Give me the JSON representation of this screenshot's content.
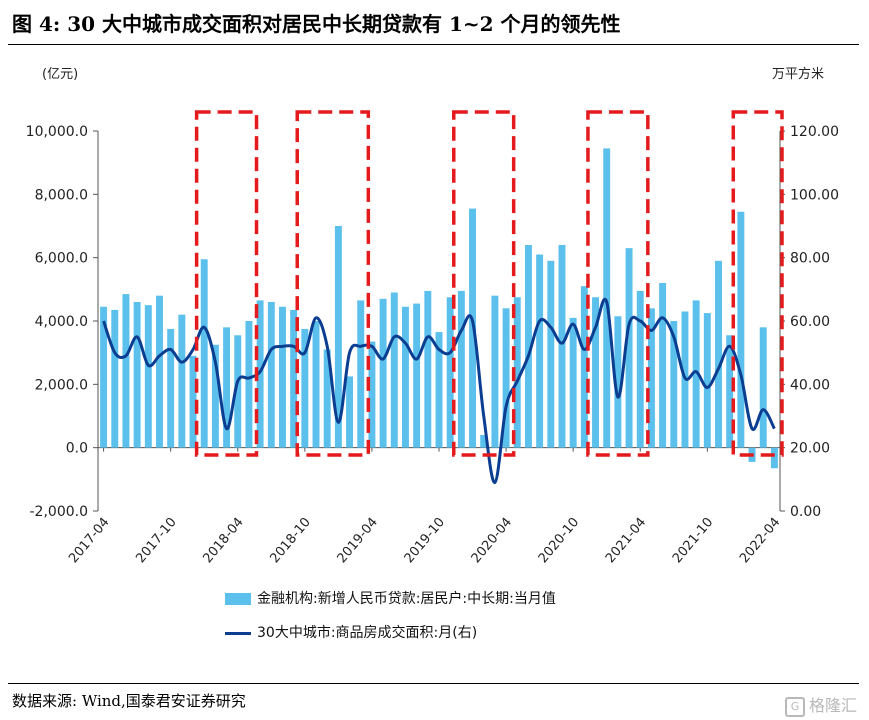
{
  "figure": {
    "title": "图 4:  30 大中城市成交面积对居民中长期贷款有 1~2 个月的领先性",
    "source": "数据来源:  Wind,国泰君安证券研究",
    "watermark": "格隆汇"
  },
  "chart_data": {
    "type": "bar",
    "left_unit": "(亿元)",
    "right_unit": "万平方米",
    "left_ticks": [
      "10,000.0",
      "8,000.0",
      "6,000.0",
      "4,000.0",
      "2,000.0",
      "0.0",
      "-2,000.0"
    ],
    "left_tick_values": [
      10000,
      8000,
      6000,
      4000,
      2000,
      0,
      -2000
    ],
    "right_ticks": [
      "120.00",
      "100.00",
      "80.00",
      "60.00",
      "40.00",
      "20.00",
      "0.00"
    ],
    "right_tick_values": [
      120,
      100,
      80,
      60,
      40,
      20,
      0
    ],
    "ylim": [
      -2000,
      10000
    ],
    "y2lim": [
      0,
      120
    ],
    "x_tick_labels": [
      "2017-04",
      "2017-10",
      "2018-04",
      "2018-10",
      "2019-04",
      "2019-10",
      "2020-04",
      "2020-10",
      "2021-04",
      "2021-10",
      "2022-04"
    ],
    "categories": [
      "2017-04",
      "2017-05",
      "2017-06",
      "2017-07",
      "2017-08",
      "2017-09",
      "2017-10",
      "2017-11",
      "2017-12",
      "2018-01",
      "2018-02",
      "2018-03",
      "2018-04",
      "2018-05",
      "2018-06",
      "2018-07",
      "2018-08",
      "2018-09",
      "2018-10",
      "2018-11",
      "2018-12",
      "2019-01",
      "2019-02",
      "2019-03",
      "2019-04",
      "2019-05",
      "2019-06",
      "2019-07",
      "2019-08",
      "2019-09",
      "2019-10",
      "2019-11",
      "2019-12",
      "2020-01",
      "2020-02",
      "2020-03",
      "2020-04",
      "2020-05",
      "2020-06",
      "2020-07",
      "2020-08",
      "2020-09",
      "2020-10",
      "2020-11",
      "2020-12",
      "2021-01",
      "2021-02",
      "2021-03",
      "2021-04",
      "2021-05",
      "2021-06",
      "2021-07",
      "2021-08",
      "2021-09",
      "2021-10",
      "2021-11",
      "2021-12",
      "2022-01",
      "2022-02",
      "2022-03",
      "2022-04"
    ],
    "series": [
      {
        "name": "金融机构:新增人民币贷款:居民户:中长期:当月值",
        "kind": "bar",
        "axis": "left",
        "color": "#5bc0eb",
        "values": [
          4450,
          4350,
          4850,
          4600,
          4500,
          4800,
          3750,
          4200,
          2900,
          5950,
          3250,
          3800,
          3550,
          4000,
          4650,
          4600,
          4450,
          4350,
          3750,
          4000,
          3100,
          7000,
          2250,
          4650,
          3350,
          4700,
          4900,
          4450,
          4550,
          4950,
          3650,
          4750,
          4950,
          7550,
          400,
          4800,
          4400,
          4750,
          6400,
          6100,
          5900,
          6400,
          4100,
          5100,
          4750,
          9450,
          4150,
          6300,
          4950,
          4400,
          5200,
          4000,
          4300,
          4650,
          4250,
          5900,
          3550,
          7450,
          -450,
          3800,
          -650
        ]
      },
      {
        "name": "30大中城市:商品房成交面积:月(右)",
        "kind": "line",
        "axis": "right",
        "color": "#0b3d91",
        "values": [
          60,
          50,
          49,
          55,
          46,
          49,
          51,
          47,
          51,
          58,
          47,
          26,
          41,
          42,
          44,
          51,
          52,
          52,
          50,
          61,
          52,
          28,
          50,
          52,
          52,
          48,
          55,
          53,
          48,
          55,
          51,
          50,
          57,
          60,
          30,
          9,
          33,
          41,
          49,
          60,
          58,
          53,
          59,
          51,
          58,
          66,
          36,
          59,
          60,
          57,
          61,
          55,
          42,
          44,
          39,
          45,
          52,
          43,
          26,
          32,
          26
        ]
      }
    ],
    "highlight_windows": [
      {
        "from": "2018-01",
        "to": "2018-05"
      },
      {
        "from": "2018-10",
        "to": "2019-03"
      },
      {
        "from": "2019-12",
        "to": "2020-04"
      },
      {
        "from": "2020-12",
        "to": "2021-04"
      },
      {
        "from": "2022-01",
        "to": "2022-04"
      }
    ],
    "highlight_color": "#e41a1c"
  }
}
